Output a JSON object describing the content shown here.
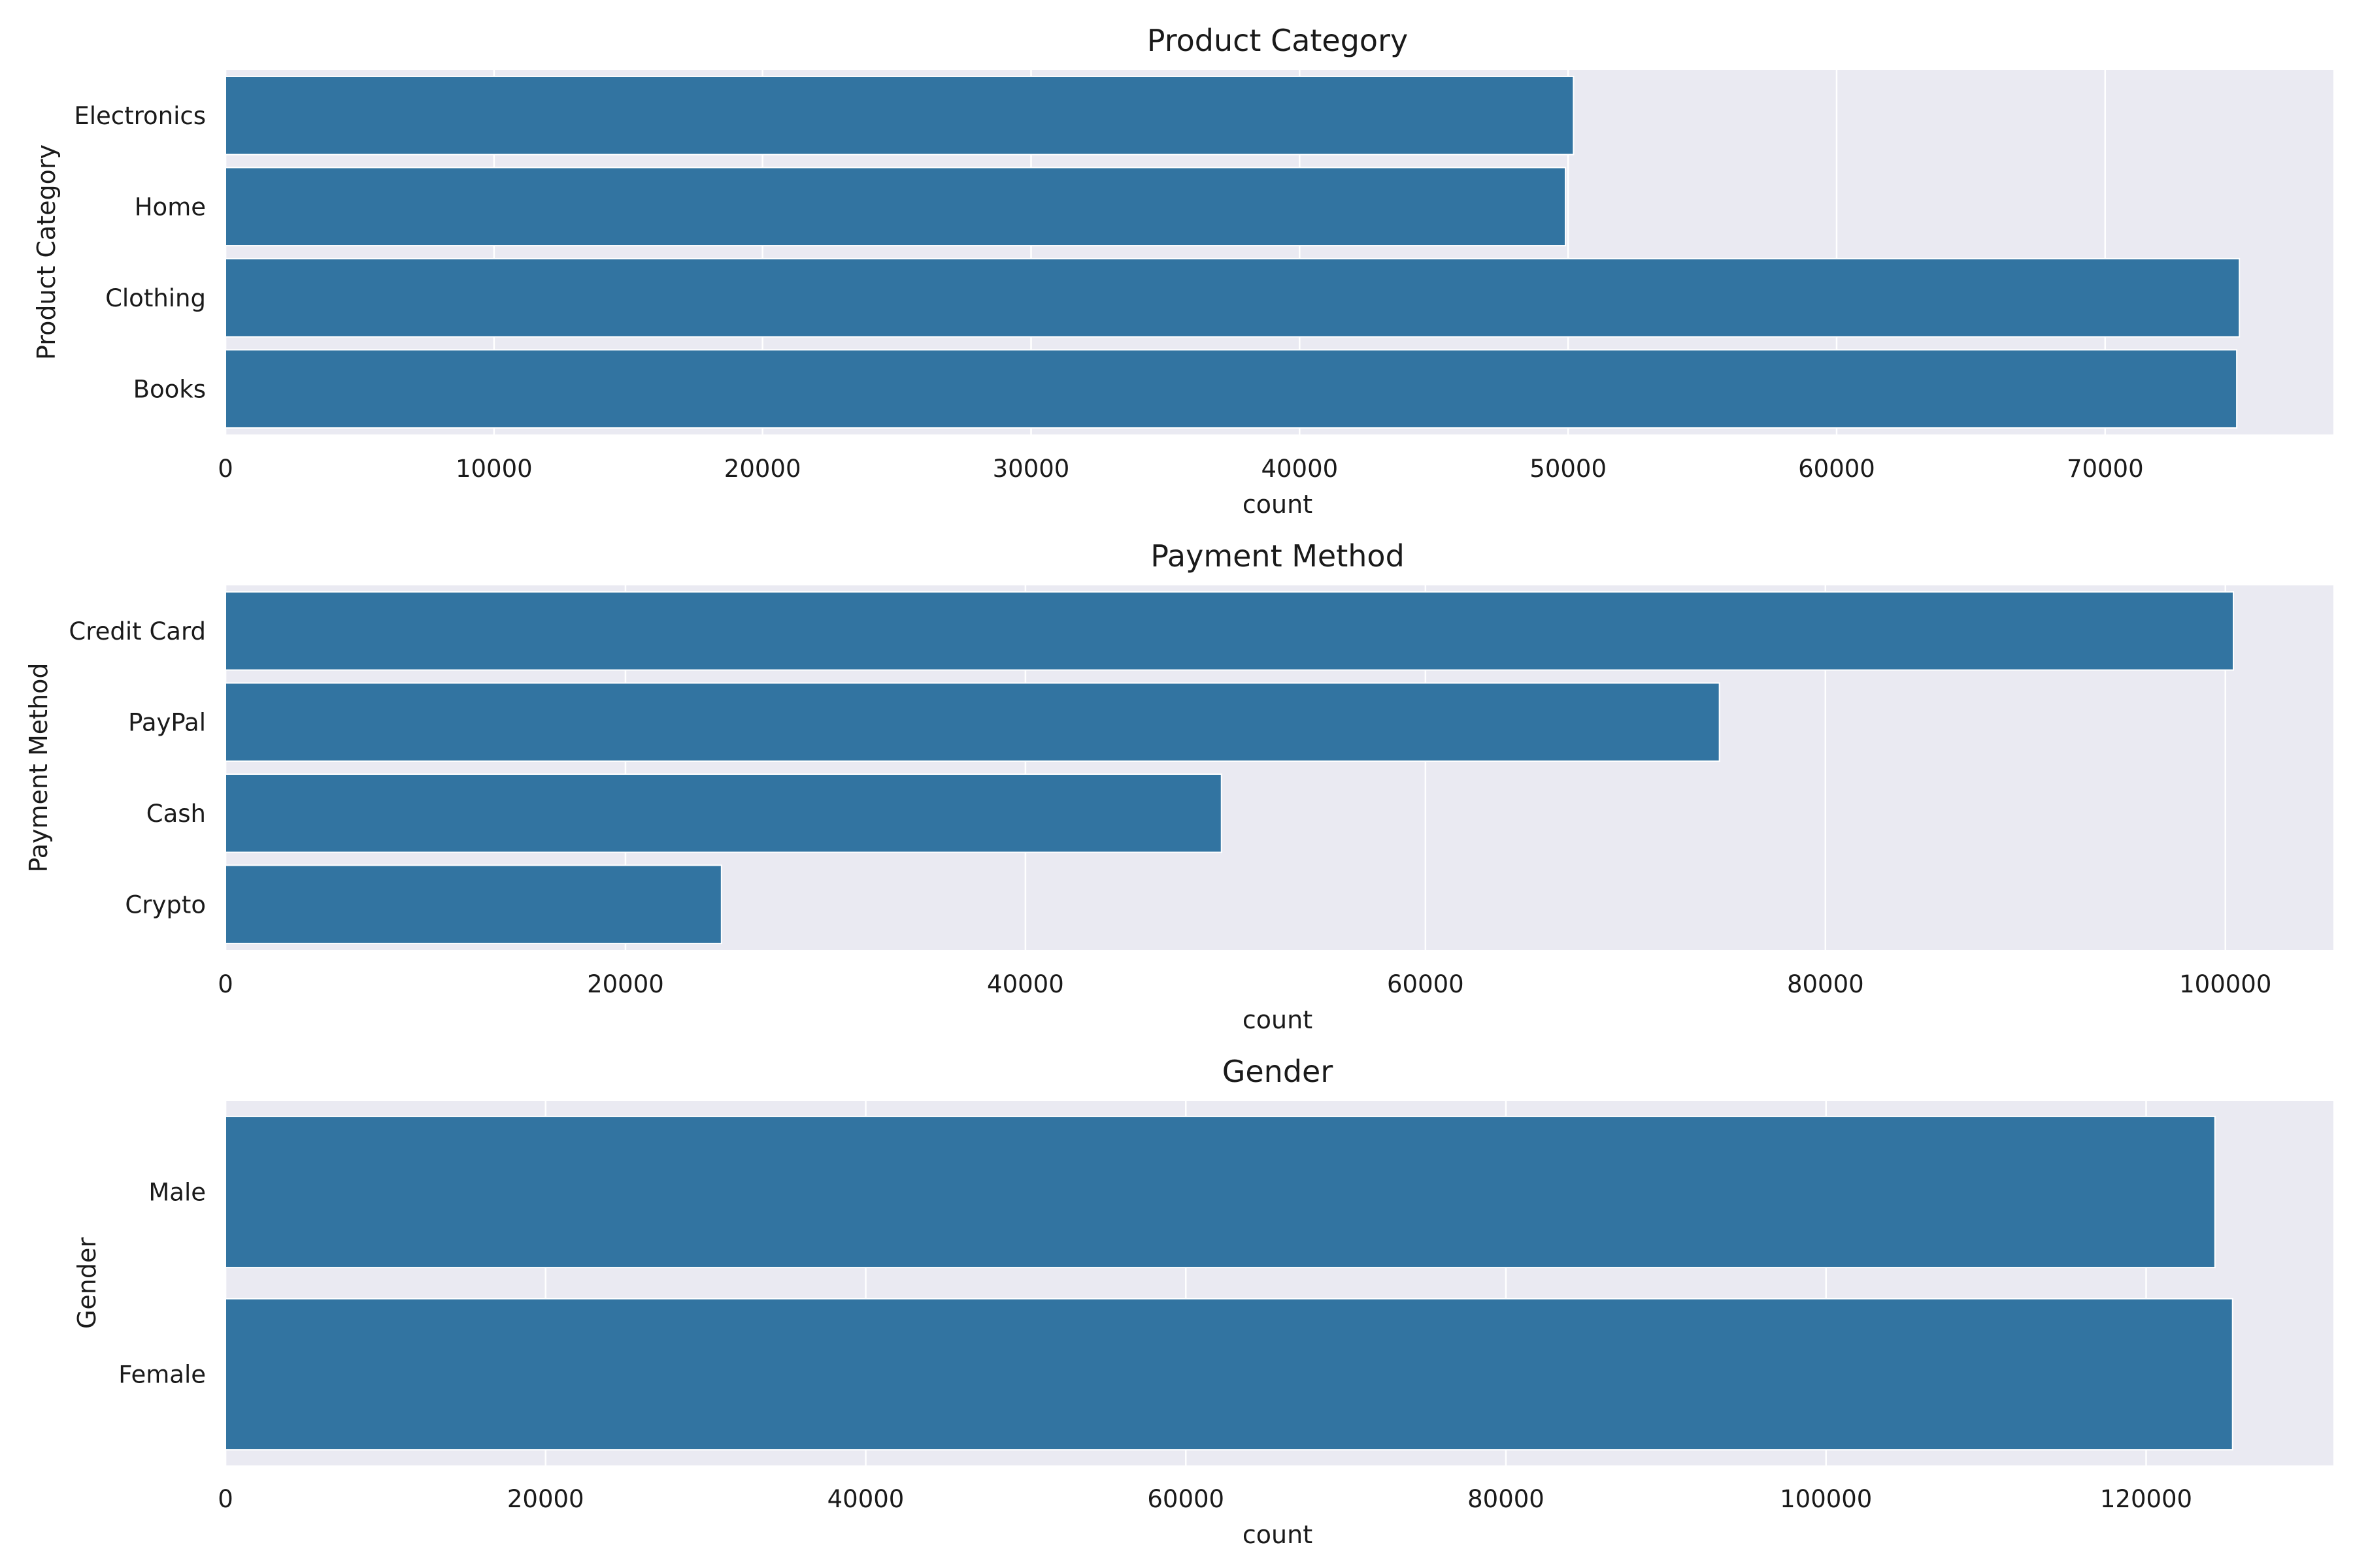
{
  "colors": {
    "bar": "#3274a1",
    "plot_background": "#eaeaf2",
    "gridline": "#ffffff",
    "text": "#1a1a1a"
  },
  "chart_data": [
    {
      "type": "bar",
      "orientation": "horizontal",
      "title": "Product Category",
      "xlabel": "count",
      "ylabel": "Product Category",
      "categories": [
        "Electronics",
        "Home",
        "Clothing",
        "Books"
      ],
      "values": [
        50200,
        49900,
        75000,
        74900
      ],
      "xlim": [
        0,
        78500
      ],
      "xticks": [
        0,
        10000,
        20000,
        30000,
        40000,
        50000,
        60000,
        70000
      ],
      "grid": true,
      "legend": "none"
    },
    {
      "type": "bar",
      "orientation": "horizontal",
      "title": "Payment Method",
      "xlabel": "count",
      "ylabel": "Payment Method",
      "categories": [
        "Credit Card",
        "PayPal",
        "Cash",
        "Crypto"
      ],
      "values": [
        100400,
        74700,
        49800,
        24800
      ],
      "xlim": [
        0,
        105400
      ],
      "xticks": [
        0,
        20000,
        40000,
        60000,
        80000,
        100000
      ],
      "grid": true,
      "legend": "none"
    },
    {
      "type": "bar",
      "orientation": "horizontal",
      "title": "Gender",
      "xlabel": "count",
      "ylabel": "Gender",
      "categories": [
        "Male",
        "Female"
      ],
      "values": [
        124300,
        125400
      ],
      "xlim": [
        0,
        131700
      ],
      "xticks": [
        0,
        20000,
        40000,
        60000,
        80000,
        100000,
        120000
      ],
      "grid": true,
      "legend": "none"
    }
  ]
}
